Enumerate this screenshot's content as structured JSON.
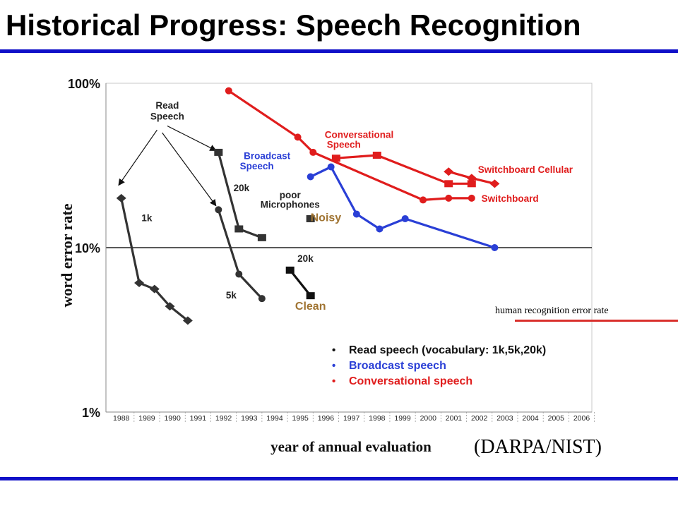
{
  "slide": {
    "title": "Historical Progress: Speech Recognition",
    "credit": "(DARPA/NIST)",
    "human_line_label": "human recognition error rate",
    "human_line_color": "#d9302c",
    "rule_color": "#1010c8"
  },
  "chart_data": {
    "type": "line",
    "xlabel": "year of annual evaluation",
    "ylabel": "word error rate",
    "x_ticks": [
      "1988",
      "1989",
      "1990",
      "1991",
      "1992",
      "1993",
      "1994",
      "1995",
      "1996",
      "1997",
      "1998",
      "1999",
      "2000",
      "2001",
      "2002",
      "2003",
      "2004",
      "2005",
      "2006"
    ],
    "y_ticks": [
      {
        "value": 1,
        "label": "1%"
      },
      {
        "value": 10,
        "label": "10%"
      },
      {
        "value": 100,
        "label": "100%"
      }
    ],
    "yscale": "log",
    "ylim": [
      1,
      100
    ],
    "reference_line_value": 10,
    "grid": false,
    "legend": {
      "placement": "bottom-right",
      "entries": [
        {
          "label": "Read speech (vocabulary: 1k,5k,20k)",
          "color": "#111111"
        },
        {
          "label": "Broadcast speech",
          "color": "#2a3fd6"
        },
        {
          "label": "Conversational speech",
          "color": "#e01d1d"
        }
      ]
    },
    "series": [
      {
        "group": "read",
        "color": "#333333",
        "marker": "diamond",
        "points": [
          [
            1988.3,
            20
          ],
          [
            1989.0,
            6.1
          ],
          [
            1989.6,
            5.6
          ],
          [
            1990.2,
            4.4
          ],
          [
            1990.9,
            3.6
          ]
        ]
      },
      {
        "group": "read",
        "color": "#333333",
        "marker": "circle",
        "points": [
          [
            1992.1,
            17
          ],
          [
            1992.9,
            6.9
          ],
          [
            1993.8,
            4.9
          ]
        ]
      },
      {
        "group": "read",
        "color": "#333333",
        "marker": "square",
        "points": [
          [
            1992.1,
            38
          ],
          [
            1992.9,
            13
          ],
          [
            1993.8,
            11.5
          ]
        ]
      },
      {
        "group": "read",
        "color": "#111111",
        "marker": "square",
        "points": [
          [
            1994.9,
            7.3
          ],
          [
            1995.7,
            5.1
          ]
        ]
      },
      {
        "group": "noisy",
        "color": "#333333",
        "marker": "square",
        "points": [
          [
            1995.7,
            15
          ]
        ]
      },
      {
        "group": "broadcast",
        "color": "#2a3fd6",
        "marker": "circle",
        "points": [
          [
            1995.7,
            27
          ],
          [
            1996.5,
            31
          ],
          [
            1997.5,
            16
          ],
          [
            1998.4,
            13
          ],
          [
            1999.4,
            15
          ],
          [
            2002.9,
            10
          ]
        ]
      },
      {
        "group": "conversational",
        "color": "#e01d1d",
        "marker": "circle",
        "points": [
          [
            1992.5,
            90
          ],
          [
            1995.2,
            47
          ],
          [
            1995.8,
            38
          ],
          [
            2000.1,
            19.5
          ],
          [
            2001.1,
            20
          ],
          [
            2002.0,
            20
          ]
        ]
      },
      {
        "group": "conversational",
        "color": "#e01d1d",
        "marker": "square",
        "points": [
          [
            1996.7,
            35
          ],
          [
            1998.3,
            36.5
          ],
          [
            2001.1,
            24.5
          ],
          [
            2002.0,
            24.5
          ]
        ]
      },
      {
        "group": "cellular",
        "color": "#e01d1d",
        "marker": "diamond",
        "points": [
          [
            2001.1,
            29
          ],
          [
            2002.0,
            26.5
          ],
          [
            2002.9,
            24.5
          ]
        ]
      }
    ],
    "annotations": [
      {
        "text": "Read",
        "color": "#222222",
        "x": 1990.1,
        "y": 70
      },
      {
        "text": "Speech",
        "color": "#222222",
        "x": 1990.1,
        "y": 60
      },
      {
        "text": "20k",
        "color": "#222222",
        "x": 1993.0,
        "y": 22
      },
      {
        "text": "1k",
        "color": "#222222",
        "x": 1989.3,
        "y": 14.5
      },
      {
        "text": "5k",
        "color": "#222222",
        "x": 1992.6,
        "y": 4.9
      },
      {
        "text": "20k",
        "color": "#222222",
        "x": 1995.5,
        "y": 8.2
      },
      {
        "text": "Clean",
        "color": "#a07432",
        "x": 1995.7,
        "y": 4.2
      },
      {
        "text": "Noisy",
        "color": "#a07432",
        "x": 1996.3,
        "y": 14.5
      },
      {
        "text": "poor",
        "color": "#222222",
        "x": 1994.9,
        "y": 20
      },
      {
        "text": "Microphones",
        "color": "#222222",
        "x": 1994.9,
        "y": 17.5
      },
      {
        "text": "Broadcast",
        "color": "#2a3fd6",
        "x": 1994.0,
        "y": 34.5
      },
      {
        "text": "Speech",
        "color": "#2a3fd6",
        "x": 1993.6,
        "y": 30
      },
      {
        "text": "Conversational",
        "color": "#e01d1d",
        "x": 1997.6,
        "y": 46.5
      },
      {
        "text": "Speech",
        "color": "#e01d1d",
        "x": 1997.0,
        "y": 40.5
      },
      {
        "text": "Switchboard Cellular",
        "color": "#e01d1d",
        "x": 2004.1,
        "y": 28.5
      },
      {
        "text": "Switchboard",
        "color": "#e01d1d",
        "x": 2003.5,
        "y": 19
      }
    ],
    "arrows": [
      {
        "from": [
          1989.7,
          52
        ],
        "to": [
          1988.2,
          24
        ]
      },
      {
        "from": [
          1990.1,
          55
        ],
        "to": [
          1992.0,
          39
        ]
      },
      {
        "from": [
          1989.9,
          50
        ],
        "to": [
          1992.0,
          18
        ]
      }
    ]
  }
}
